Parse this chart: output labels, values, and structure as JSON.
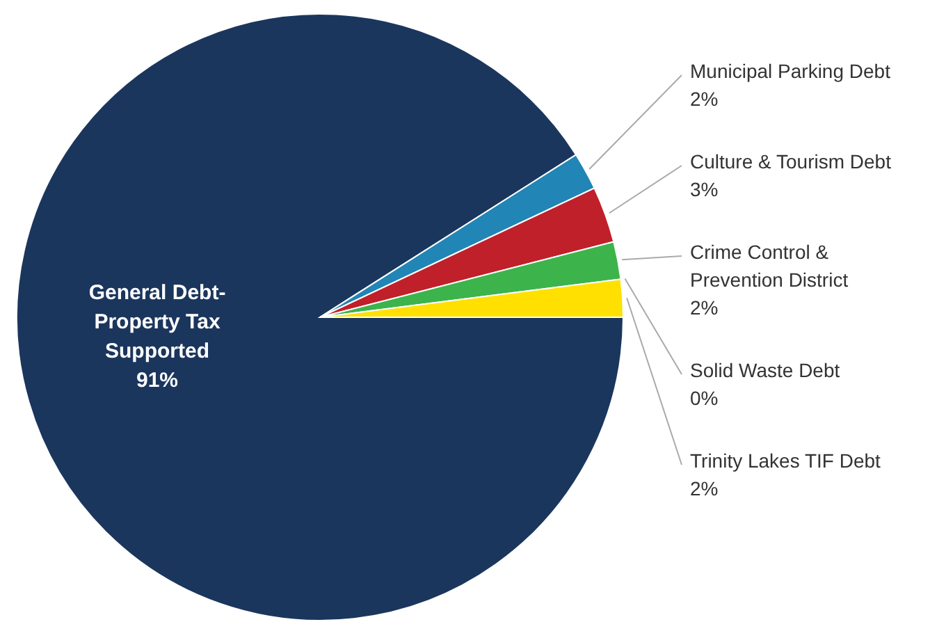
{
  "chart_data": {
    "type": "pie",
    "categories": [
      "General Debt-\nProperty Tax\nSupported",
      "Municipal Parking Debt",
      "Culture & Tourism Debt",
      "Crime Control &\nPrevention District",
      "Solid Waste Debt",
      "Trinity Lakes TIF Debt"
    ],
    "values": [
      91,
      2,
      3,
      2,
      0,
      2
    ],
    "value_labels": [
      "91%",
      "2%",
      "3%",
      "2%",
      "0%",
      "2%"
    ],
    "colors": [
      "#1b365d",
      "#2185b5",
      "#c0202a",
      "#3cb44b",
      "#c8c8c8",
      "#ffe000"
    ]
  }
}
